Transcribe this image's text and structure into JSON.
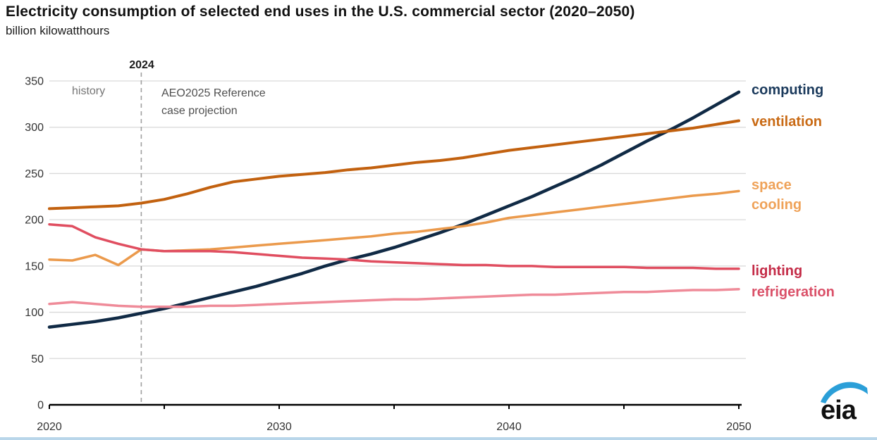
{
  "header": {
    "title": "Electricity consumption of selected end uses in the U.S. commercial sector (2020–2050)",
    "subtitle": "billion kilowatthours"
  },
  "annotations": {
    "divider_year": "2024",
    "history": "history",
    "projection": "AEO2025 Reference\ncase projection"
  },
  "logo": {
    "text": "eia",
    "swoosh_color": "#2b9fd8"
  },
  "colors": {
    "grid": "#d9d9d9",
    "axis": "#000000",
    "divider": "#a0a0a0",
    "tick_text": "#333333"
  },
  "chart_data": {
    "type": "line",
    "title": "Electricity consumption of selected end uses in the U.S. commercial sector (2020–2050)",
    "ylabel": "billion kilowatthours",
    "xlabel": "",
    "xlim": [
      2020,
      2050
    ],
    "ylim": [
      0,
      350
    ],
    "yticks": [
      0,
      50,
      100,
      150,
      200,
      250,
      300,
      350
    ],
    "xticks": [
      2020,
      2030,
      2040,
      2050
    ],
    "xticks_minor": [
      2025,
      2035,
      2045
    ],
    "grid": "horizontal",
    "divider_x": 2024,
    "legend_position": "right-of-lines",
    "x": [
      2020,
      2021,
      2022,
      2023,
      2024,
      2025,
      2026,
      2027,
      2028,
      2029,
      2030,
      2031,
      2032,
      2033,
      2034,
      2035,
      2036,
      2037,
      2038,
      2039,
      2040,
      2041,
      2042,
      2043,
      2044,
      2045,
      2046,
      2047,
      2048,
      2049,
      2050
    ],
    "series": [
      {
        "name": "computing",
        "label": "computing",
        "color": "#102a45",
        "label_color": "#1b3a5c",
        "stroke_width": 4.5,
        "values": [
          84,
          87,
          90,
          94,
          99,
          104,
          110,
          116,
          122,
          128,
          135,
          142,
          150,
          157,
          163,
          170,
          178,
          186,
          195,
          205,
          215,
          225,
          236,
          247,
          259,
          272,
          285,
          297,
          310,
          324,
          338
        ]
      },
      {
        "name": "ventilation",
        "label": "ventilation",
        "color": "#c2610f",
        "label_color": "#c96a14",
        "stroke_width": 4,
        "values": [
          212,
          213,
          214,
          215,
          218,
          222,
          228,
          235,
          241,
          244,
          247,
          249,
          251,
          254,
          256,
          259,
          262,
          264,
          267,
          271,
          275,
          278,
          281,
          284,
          287,
          290,
          293,
          296,
          299,
          303,
          307
        ]
      },
      {
        "name": "space cooling",
        "label": "space\ncooling",
        "color": "#eb9a4c",
        "label_color": "#efa258",
        "stroke_width": 3.5,
        "values": [
          157,
          156,
          162,
          151,
          168,
          166,
          167,
          168,
          170,
          172,
          174,
          176,
          178,
          180,
          182,
          185,
          187,
          190,
          193,
          197,
          202,
          205,
          208,
          211,
          214,
          217,
          220,
          223,
          226,
          228,
          231
        ]
      },
      {
        "name": "lighting",
        "label": "lighting",
        "color": "#e04e60",
        "label_color": "#c42b47",
        "stroke_width": 3.5,
        "values": [
          195,
          193,
          181,
          174,
          168,
          166,
          166,
          166,
          165,
          163,
          161,
          159,
          158,
          157,
          155,
          154,
          153,
          152,
          151,
          151,
          150,
          150,
          149,
          149,
          149,
          149,
          148,
          148,
          148,
          147,
          147
        ]
      },
      {
        "name": "refrigeration",
        "label": "refrigeration",
        "color": "#ef8b99",
        "label_color": "#da5068",
        "stroke_width": 3.5,
        "values": [
          109,
          111,
          109,
          107,
          106,
          106,
          106,
          107,
          107,
          108,
          109,
          110,
          111,
          112,
          113,
          114,
          114,
          115,
          116,
          117,
          118,
          119,
          119,
          120,
          121,
          122,
          122,
          123,
          124,
          124,
          125
        ]
      }
    ]
  }
}
